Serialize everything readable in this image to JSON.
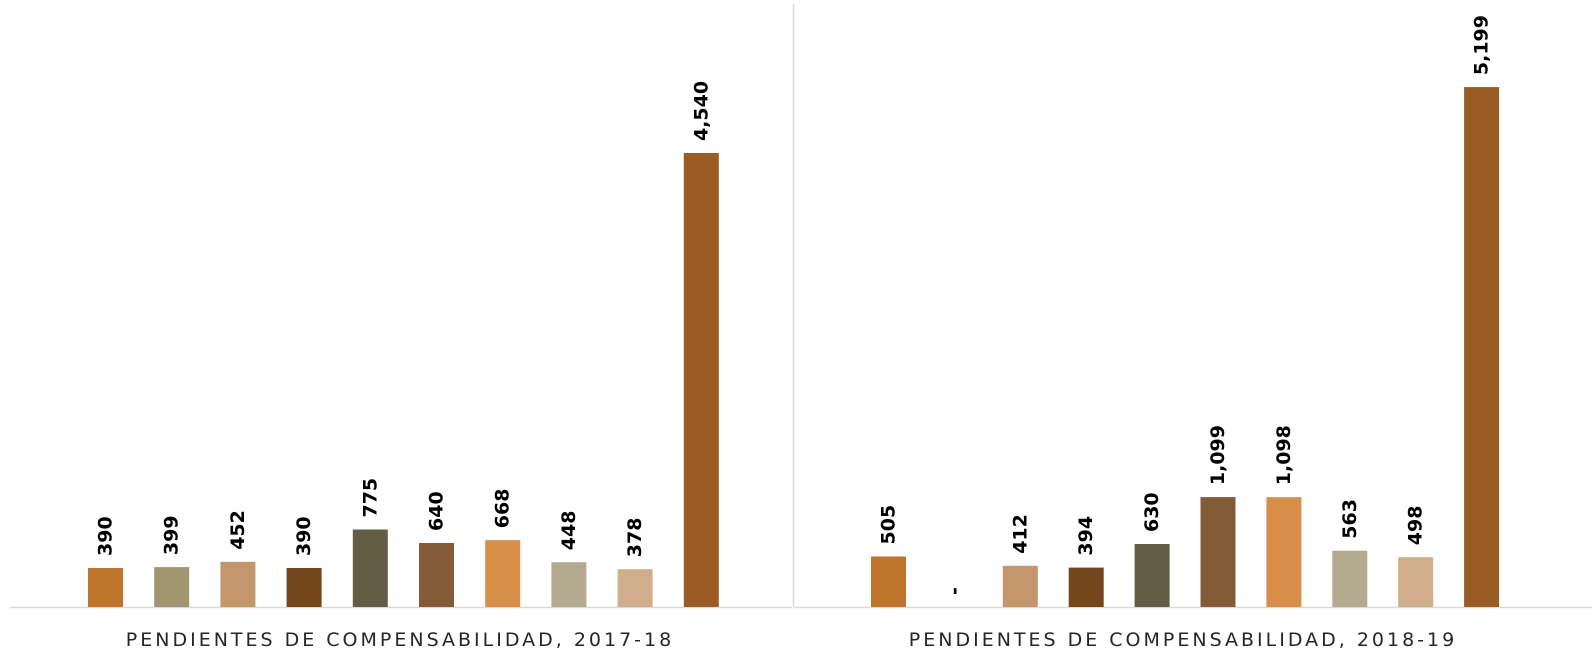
{
  "chart_data": [
    {
      "type": "bar",
      "title": "PENDIENTES DE COMPENSABILIDAD, 2017-18",
      "values": [
        390,
        399,
        452,
        390,
        775,
        640,
        668,
        448,
        378,
        4540
      ],
      "labels": [
        "390",
        "399",
        "452",
        "390",
        "775",
        "640",
        "668",
        "448",
        "378",
        "4,540"
      ],
      "colors": [
        "#C0752C",
        "#A0966F",
        "#C4966C",
        "#74461C",
        "#635D46",
        "#835B37",
        "#D88E49",
        "#B3AA8F",
        "#D0AE8C",
        "#9A5C23"
      ],
      "ylim": [
        0,
        5800
      ],
      "grid": false
    },
    {
      "type": "bar",
      "title": "PENDIENTES DE COMPENSABILIDAD, 2018-19",
      "values": [
        505,
        0,
        412,
        394,
        630,
        1099,
        1098,
        563,
        498,
        5199
      ],
      "labels": [
        "505",
        "-",
        "412",
        "394",
        "630",
        "1,099",
        "1,098",
        "563",
        "498",
        "5,199"
      ],
      "colors": [
        "#C0752C",
        "#A0966F",
        "#C4966C",
        "#74461C",
        "#635D46",
        "#835B37",
        "#D88E49",
        "#B3AA8F",
        "#D0AE8C",
        "#9A5C23"
      ],
      "ylim": [
        0,
        5800
      ],
      "grid": false
    }
  ]
}
